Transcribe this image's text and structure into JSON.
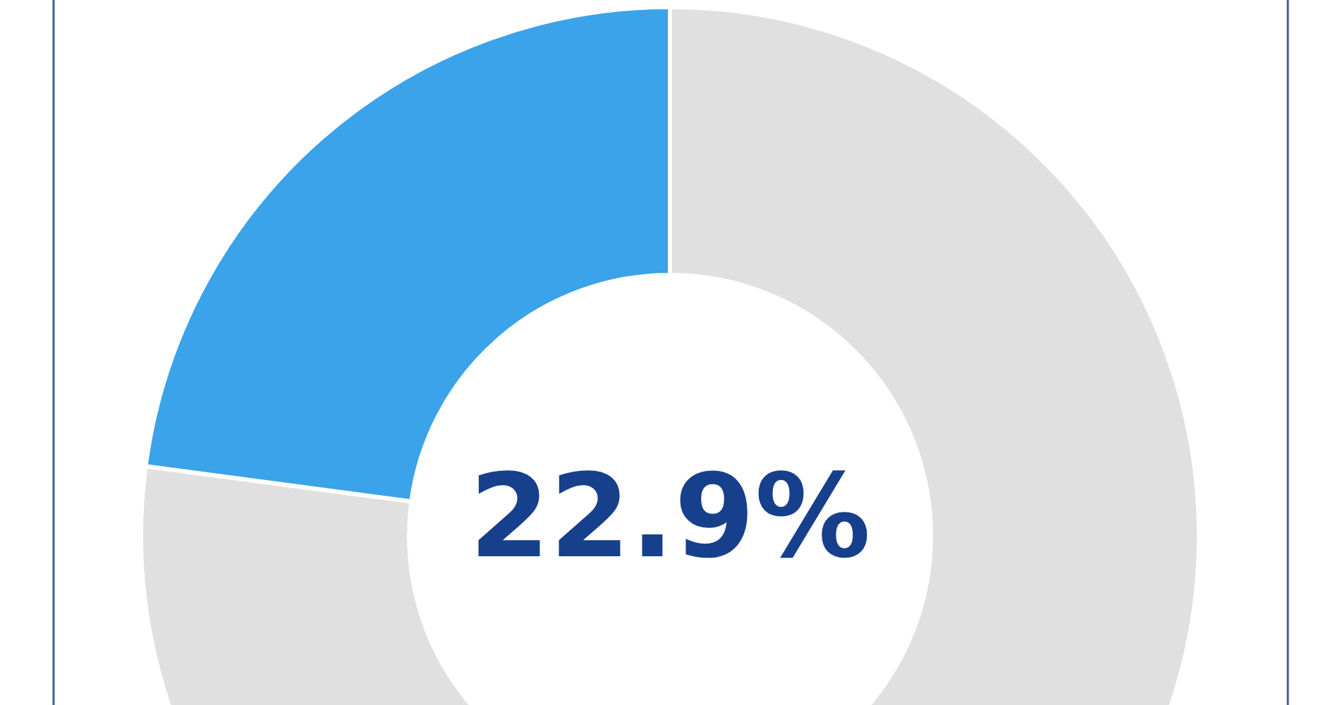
{
  "chart_data": {
    "type": "donut",
    "categories": [
      null,
      null
    ],
    "values": [
      77.1,
      22.9
    ],
    "colors": [
      "#e0e0e0",
      "#3aa3e9"
    ],
    "annotations": [
      "22.9%"
    ]
  }
}
